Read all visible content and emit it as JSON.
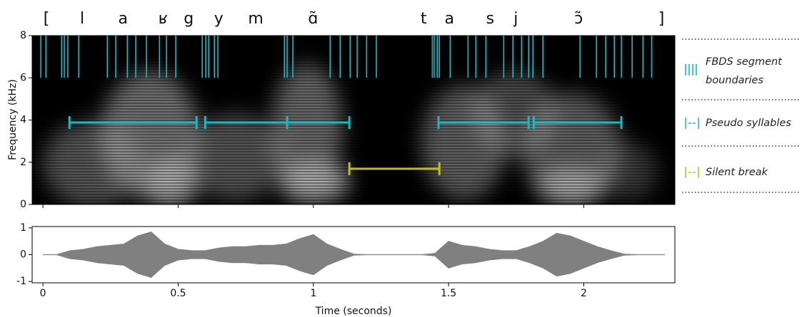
{
  "chart_data": [
    {
      "type": "spectrogram",
      "ylabel": "Frequency (kHz)",
      "xlim": [
        -0.04,
        2.337
      ],
      "xticks": [
        0,
        0.5,
        1,
        1.5,
        2
      ],
      "ylim": [
        0,
        8
      ],
      "yticks": [
        0,
        2,
        4,
        6,
        8
      ],
      "phonemes": [
        {
          "label": "[",
          "x": 0.013
        },
        {
          "label": "l",
          "x": 0.145
        },
        {
          "label": "a",
          "x": 0.296
        },
        {
          "label": "ʁ",
          "x": 0.444
        },
        {
          "label": "g",
          "x": 0.539
        },
        {
          "label": "y",
          "x": 0.65
        },
        {
          "label": "m",
          "x": 0.787
        },
        {
          "label": "ɑ̃",
          "x": 0.999
        },
        {
          "label": "t",
          "x": 1.408
        },
        {
          "label": "a",
          "x": 1.503
        },
        {
          "label": "s",
          "x": 1.654
        },
        {
          "label": "j",
          "x": 1.749
        },
        {
          "label": "ɔ̃",
          "x": 1.981
        },
        {
          "label": "]",
          "x": 2.287
        }
      ],
      "series": [
        {
          "name": "FBDS segment boundaries",
          "color": "#1fb5c2",
          "yrange": [
            6,
            8
          ],
          "x": [
            -0.008,
            0.011,
            0.069,
            0.079,
            0.092,
            0.132,
            0.238,
            0.269,
            0.312,
            0.343,
            0.383,
            0.431,
            0.457,
            0.491,
            0.589,
            0.602,
            0.613,
            0.634,
            0.647,
            0.893,
            0.903,
            0.924,
            1.062,
            1.099,
            1.136,
            1.162,
            1.197,
            1.233,
            1.44,
            1.447,
            1.458,
            1.466,
            1.506,
            1.572,
            1.601,
            1.638,
            1.704,
            1.738,
            1.77,
            1.796,
            1.812,
            1.849,
            1.986,
            2.047,
            2.081,
            2.113,
            2.139,
            2.179,
            2.219,
            2.251
          ]
        },
        {
          "name": "Pseudo syllables",
          "color": "#1fb5c2",
          "y": 3.88,
          "intervals": [
            [
              0.098,
              0.568
            ],
            [
              0.6,
              0.903
            ],
            [
              0.903,
              1.133
            ],
            [
              1.463,
              1.796
            ],
            [
              1.815,
              2.139
            ]
          ]
        },
        {
          "name": "Silent break",
          "color": "#bcbd22",
          "y": 1.69,
          "intervals": [
            [
              1.133,
              1.466
            ]
          ]
        }
      ]
    },
    {
      "type": "waveform",
      "xlabel": "Time (seconds)",
      "color": "#808080",
      "xlim": [
        -0.04,
        2.337
      ],
      "xticks": [
        0,
        0.5,
        1,
        1.5,
        2
      ],
      "ylim": [
        -1.05,
        1.05
      ],
      "yticks": [
        -1,
        0,
        1
      ],
      "x": [
        0,
        0.05,
        0.1,
        0.15,
        0.2,
        0.25,
        0.3,
        0.35,
        0.4,
        0.45,
        0.5,
        0.55,
        0.6,
        0.65,
        0.7,
        0.75,
        0.8,
        0.85,
        0.9,
        0.95,
        1.0,
        1.05,
        1.1,
        1.15,
        1.2,
        1.25,
        1.3,
        1.35,
        1.4,
        1.45,
        1.5,
        1.55,
        1.6,
        1.65,
        1.7,
        1.75,
        1.8,
        1.85,
        1.9,
        1.95,
        2.0,
        2.05,
        2.1,
        2.15,
        2.2,
        2.25,
        2.3
      ],
      "values": [
        0,
        0,
        0.15,
        0.2,
        0.3,
        0.35,
        0.4,
        0.7,
        0.85,
        0.4,
        0.2,
        0.15,
        0.15,
        0.25,
        0.3,
        0.3,
        0.35,
        0.35,
        0.4,
        0.6,
        0.75,
        0.4,
        0.2,
        0.02,
        0,
        0,
        0,
        0,
        0,
        0.05,
        0.5,
        0.35,
        0.3,
        0.2,
        0.15,
        0.15,
        0.3,
        0.5,
        0.8,
        0.7,
        0.5,
        0.3,
        0.15,
        0.02,
        0,
        0,
        0
      ]
    }
  ]
}
